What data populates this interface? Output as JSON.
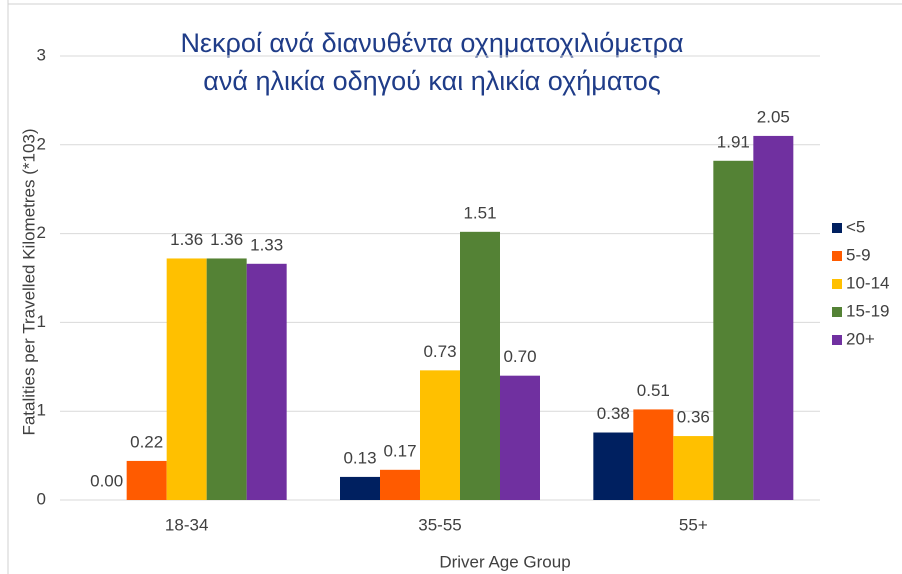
{
  "chart_data": {
    "type": "bar",
    "title": [
      "Νεκροί ανά διανυθέντα οχηματοχιλιόμετρα",
      "ανά ηλικία οδηγού και ηλικία οχήματος"
    ],
    "x_label": "Driver Age Group",
    "y_label": "Fatalities per Travelled Kilometres (*103)",
    "categories": [
      "18-34",
      "35-55",
      "55+"
    ],
    "series": [
      {
        "name": "<5",
        "color": "#002060",
        "values": [
          0,
          0.13,
          0.38
        ],
        "value_labels": [
          "0.00",
          "0.13",
          "0.38"
        ]
      },
      {
        "name": "5-9",
        "color": "#ff5b00",
        "values": [
          0.22,
          0.17,
          0.51
        ],
        "value_labels": [
          "0.22",
          "0.17",
          "0.51"
        ]
      },
      {
        "name": "10-14",
        "color": "#ffc000",
        "values": [
          1.36,
          0.73,
          0.36
        ],
        "value_labels": [
          "1.36",
          "0.73",
          "0.36"
        ]
      },
      {
        "name": "15-19",
        "color": "#548235",
        "values": [
          1.36,
          1.51,
          1.91
        ],
        "value_labels": [
          "1.36",
          "1.51",
          "1.91"
        ]
      },
      {
        "name": "20+",
        "color": "#7030a0",
        "values": [
          1.33,
          0.7,
          2.05
        ],
        "value_labels": [
          "1.33",
          "0.70",
          "2.05"
        ]
      }
    ],
    "ylim": [
      0,
      2.5
    ],
    "yticks": [
      0,
      {
        "value": 0.5,
        "label": "1"
      },
      {
        "value": 1,
        "label": "1"
      },
      {
        "value": 1.5,
        "label": "2"
      },
      {
        "value": 2,
        "label": "2"
      },
      {
        "value": 2.5,
        "label": "3"
      }
    ],
    "grid": true,
    "legend": "right"
  }
}
